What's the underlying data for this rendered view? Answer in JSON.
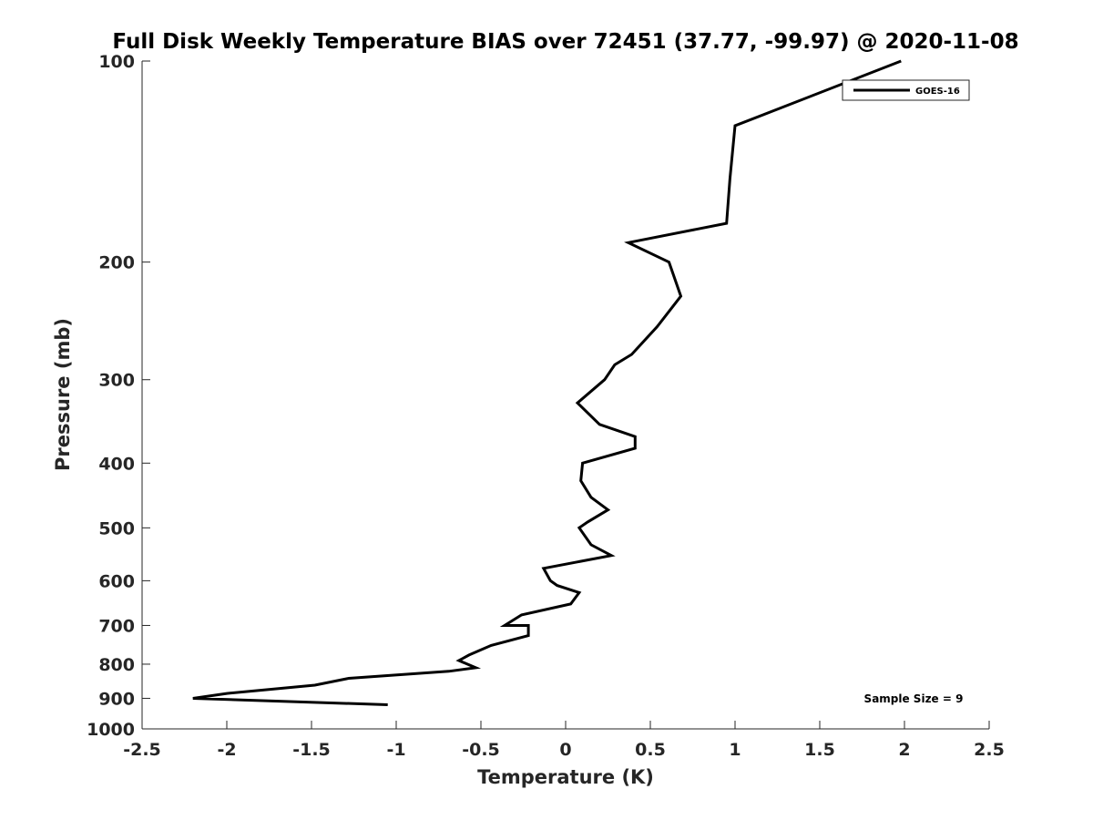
{
  "chart_data": {
    "type": "line",
    "title": "Full Disk Weekly Temperature BIAS over 72451 (37.77, -99.97) @ 2020-11-08",
    "xlabel": "Temperature (K)",
    "ylabel": "Pressure (mb)",
    "xlim": [
      -2.5,
      2.5
    ],
    "ylim": [
      100,
      1000
    ],
    "y_scale": "log",
    "y_reversed": true,
    "grid": false,
    "legend_position": "top-right",
    "x_ticks": [
      -2.5,
      -2,
      -1.5,
      -1,
      -0.5,
      0,
      0.5,
      1,
      1.5,
      2,
      2.5
    ],
    "x_tick_labels": [
      "-2.5",
      "-2",
      "-1.5",
      "-1",
      "-0.5",
      "0",
      "0.5",
      "1",
      "1.5",
      "2",
      "2.5"
    ],
    "y_ticks": [
      100,
      200,
      300,
      400,
      500,
      600,
      700,
      800,
      900,
      1000
    ],
    "y_tick_labels": [
      "100",
      "200",
      "300",
      "400",
      "500",
      "600",
      "700",
      "800",
      "900",
      "1000"
    ],
    "series": [
      {
        "name": "GOES-16",
        "color": "#000000",
        "points": [
          [
            1.98,
            100
          ],
          [
            1.0,
            125
          ],
          [
            0.97,
            150
          ],
          [
            0.95,
            175
          ],
          [
            0.37,
            187
          ],
          [
            0.61,
            200
          ],
          [
            0.68,
            225
          ],
          [
            0.54,
            250
          ],
          [
            0.39,
            275
          ],
          [
            0.29,
            285
          ],
          [
            0.23,
            300
          ],
          [
            0.07,
            325
          ],
          [
            0.2,
            350
          ],
          [
            0.41,
            365
          ],
          [
            0.41,
            380
          ],
          [
            0.1,
            400
          ],
          [
            0.09,
            425
          ],
          [
            0.15,
            450
          ],
          [
            0.25,
            470
          ],
          [
            0.13,
            490
          ],
          [
            0.08,
            500
          ],
          [
            0.15,
            530
          ],
          [
            0.27,
            550
          ],
          [
            -0.13,
            575
          ],
          [
            -0.09,
            600
          ],
          [
            -0.05,
            610
          ],
          [
            0.08,
            625
          ],
          [
            0.03,
            650
          ],
          [
            -0.26,
            675
          ],
          [
            -0.36,
            700
          ],
          [
            -0.22,
            700
          ],
          [
            -0.22,
            725
          ],
          [
            -0.44,
            750
          ],
          [
            -0.57,
            775
          ],
          [
            -0.63,
            790
          ],
          [
            -0.53,
            810
          ],
          [
            -0.69,
            820
          ],
          [
            -1.28,
            840
          ],
          [
            -1.48,
            860
          ],
          [
            -2.0,
            885
          ],
          [
            -2.2,
            900
          ],
          [
            -1.05,
            920
          ]
        ]
      }
    ],
    "annotations": [
      "Sample Size = 9"
    ]
  }
}
